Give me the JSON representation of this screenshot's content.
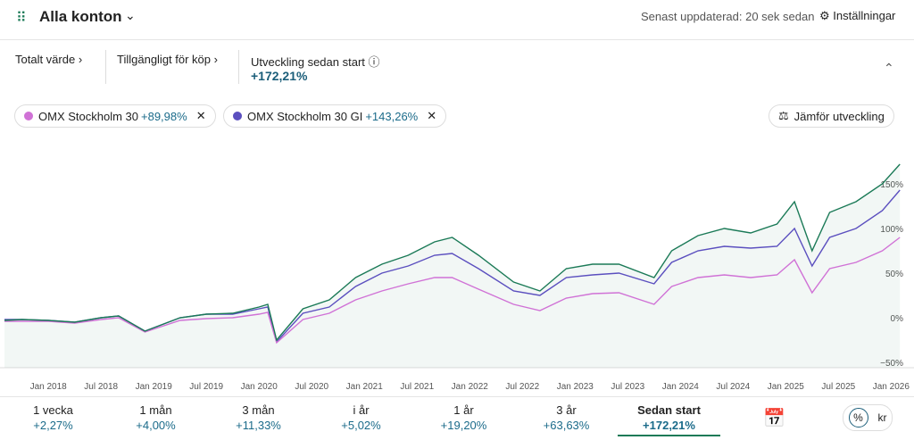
{
  "header": {
    "title": "Alla konton",
    "updated": "Senast uppdaterad: 20 sek sedan",
    "settings": "Inställningar"
  },
  "summary": [
    {
      "label": "Totalt värde"
    },
    {
      "label": "Tillgängligt för köp"
    },
    {
      "label": "Utveckling sedan start",
      "value": "+172,21%"
    }
  ],
  "compare_button": "Jämför utveckling",
  "chart_data": {
    "type": "line",
    "grid": false,
    "x": [
      "2017-08",
      "2017-10",
      "2018-01",
      "2018-04",
      "2018-07",
      "2018-09",
      "2018-12",
      "2019-04",
      "2019-07",
      "2019-10",
      "2020-01",
      "2020-02",
      "2020-03",
      "2020-06",
      "2020-09",
      "2020-12",
      "2021-03",
      "2021-06",
      "2021-09",
      "2021-11",
      "2022-02",
      "2022-06",
      "2022-09",
      "2022-12",
      "2023-03",
      "2023-06",
      "2023-10",
      "2023-12",
      "2024-03",
      "2024-06",
      "2024-09",
      "2024-12",
      "2025-02",
      "2025-04",
      "2025-06",
      "2025-09",
      "2025-12",
      "2026-02"
    ],
    "xlim": [
      "2017-08",
      "2026-03"
    ],
    "xticks": [
      {
        "value": "2018-01",
        "label": "Jan 2018"
      },
      {
        "value": "2018-07",
        "label": "Jul 2018"
      },
      {
        "value": "2019-01",
        "label": "Jan 2019"
      },
      {
        "value": "2019-07",
        "label": "Jul 2019"
      },
      {
        "value": "2020-01",
        "label": "Jan 2020"
      },
      {
        "value": "2020-07",
        "label": "Jul 2020"
      },
      {
        "value": "2021-01",
        "label": "Jan 2021"
      },
      {
        "value": "2021-07",
        "label": "Jul 2021"
      },
      {
        "value": "2022-01",
        "label": "Jan 2022"
      },
      {
        "value": "2022-07",
        "label": "Jul 2022"
      },
      {
        "value": "2023-01",
        "label": "Jan 2023"
      },
      {
        "value": "2023-07",
        "label": "Jul 2023"
      },
      {
        "value": "2024-01",
        "label": "Jan 2024"
      },
      {
        "value": "2024-07",
        "label": "Jul 2024"
      },
      {
        "value": "2025-01",
        "label": "Jan 2025"
      },
      {
        "value": "2025-07",
        "label": "Jul 2025"
      },
      {
        "value": "2026-01",
        "label": "Jan 2026"
      }
    ],
    "ylim": [
      -56,
      196
    ],
    "yticks": [
      {
        "value": -50,
        "label": "−50%"
      },
      {
        "value": 0,
        "label": "0%"
      },
      {
        "value": 50,
        "label": "50%"
      },
      {
        "value": 100,
        "label": "100%"
      },
      {
        "value": 150,
        "label": "150%"
      }
    ],
    "series": [
      {
        "color": "#1b7a57",
        "values": [
          -3,
          -2,
          -3,
          -5,
          0,
          2,
          -15,
          0,
          4,
          5,
          12,
          15,
          -25,
          10,
          20,
          45,
          60,
          70,
          85,
          90,
          70,
          40,
          30,
          55,
          60,
          60,
          45,
          75,
          92,
          100,
          95,
          105,
          130,
          75,
          118,
          130,
          150,
          172
        ]
      },
      {
        "name": "OMX Stockholm 30",
        "change": "+89,98%",
        "color": "#d072d6",
        "values": [
          -4,
          -4,
          -4,
          -6,
          -2,
          0,
          -16,
          -3,
          -1,
          0,
          4,
          6,
          -28,
          -2,
          5,
          20,
          30,
          38,
          45,
          45,
          32,
          15,
          8,
          22,
          27,
          28,
          15,
          35,
          45,
          48,
          45,
          48,
          65,
          28,
          55,
          62,
          75,
          90
        ]
      },
      {
        "name": "OMX Stockholm 30 GI",
        "change": "+143,26%",
        "color": "#5b4fbf",
        "values": [
          -2,
          -2,
          -3,
          -5,
          0,
          2,
          -15,
          0,
          4,
          4,
          10,
          12,
          -27,
          5,
          12,
          35,
          50,
          58,
          70,
          72,
          55,
          30,
          25,
          45,
          48,
          50,
          38,
          62,
          75,
          80,
          78,
          80,
          100,
          58,
          90,
          100,
          120,
          143
        ]
      }
    ]
  },
  "periods": [
    {
      "label": "1 vecka",
      "change": "+2,27%"
    },
    {
      "label": "1 mån",
      "change": "+4,00%"
    },
    {
      "label": "3 mån",
      "change": "+11,33%"
    },
    {
      "label": "i år",
      "change": "+5,02%"
    },
    {
      "label": "1 år",
      "change": "+19,20%"
    },
    {
      "label": "3 år",
      "change": "+63,63%"
    },
    {
      "label": "Sedan start",
      "change": "+172,21%"
    }
  ],
  "unit_toggle": [
    "%",
    "kr"
  ]
}
